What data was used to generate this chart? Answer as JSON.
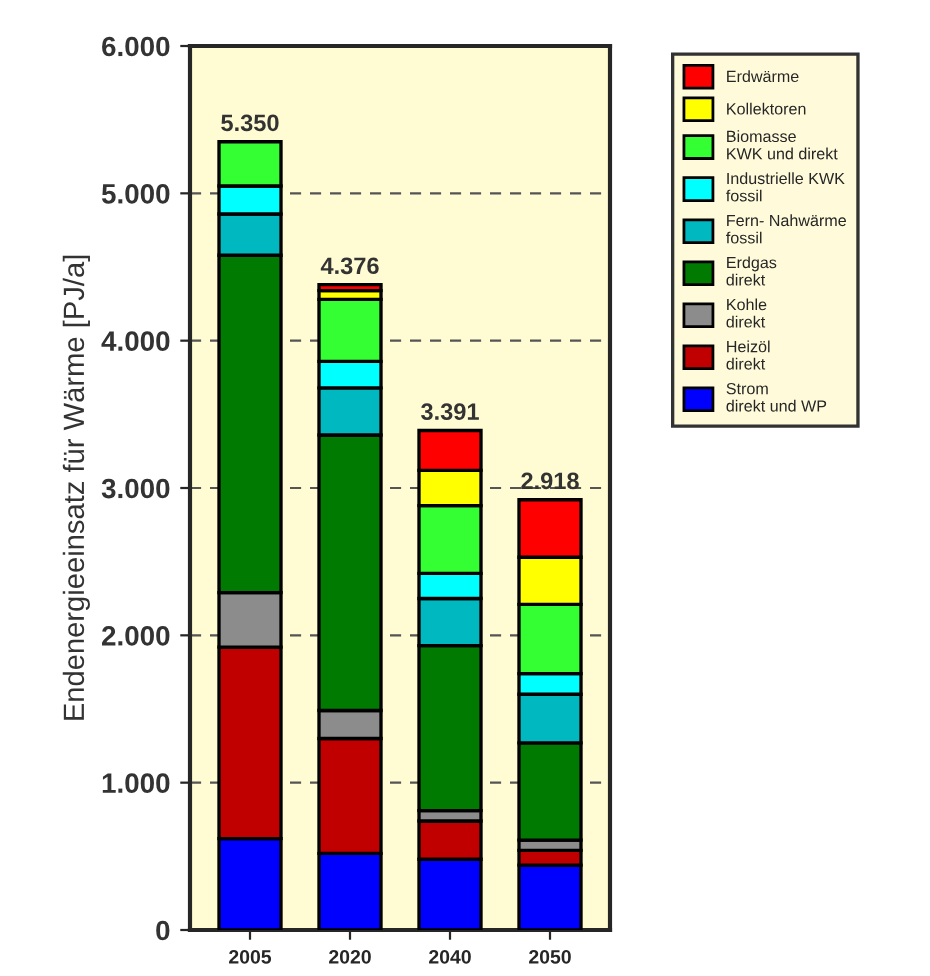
{
  "chart_data": {
    "type": "bar",
    "stacked": true,
    "ylabel": "Endenergieeinsatz für Wärme [PJ/a]",
    "categories": [
      "2005",
      "2020",
      "2040",
      "2050"
    ],
    "series": [
      {
        "name": "Strom\ndirekt und WP",
        "color": "#0000ff",
        "values": [
          620,
          520,
          480,
          440
        ]
      },
      {
        "name": "Heizöl\ndirekt",
        "color": "#c00000",
        "values": [
          1300,
          780,
          260,
          100
        ]
      },
      {
        "name": "Kohle\ndirekt",
        "color": "#8c8c8c",
        "values": [
          370,
          190,
          70,
          70
        ]
      },
      {
        "name": "Erdgas\ndirekt",
        "color": "#007a00",
        "values": [
          2290,
          1870,
          1120,
          660
        ]
      },
      {
        "name": "Fern- Nahwärme\nfossil",
        "color": "#00b8c0",
        "values": [
          280,
          320,
          320,
          330
        ]
      },
      {
        "name": "Industrielle KWK\nfossil",
        "color": "#00ffff",
        "values": [
          190,
          180,
          170,
          140
        ]
      },
      {
        "name": "Biomasse\nKWK und direkt",
        "color": "#33ff33",
        "values": [
          300,
          420,
          460,
          470
        ]
      },
      {
        "name": "Kollektoren",
        "color": "#ffff00",
        "values": [
          null,
          60,
          240,
          320
        ]
      },
      {
        "name": "Erdwärme",
        "color": "#ff0000",
        "values": [
          null,
          40,
          270,
          390
        ]
      }
    ],
    "totals": [
      "5.350",
      "4.376",
      "3.391",
      "2.918"
    ],
    "ylim": [
      0,
      6000
    ],
    "yticks": [
      {
        "value": 0,
        "label": "0"
      },
      {
        "value": 1000,
        "label": "1.000"
      },
      {
        "value": 2000,
        "label": "2.000"
      },
      {
        "value": 3000,
        "label": "3.000"
      },
      {
        "value": 4000,
        "label": "4.000"
      },
      {
        "value": 5000,
        "label": "5.000"
      },
      {
        "value": 6000,
        "label": "6.000"
      }
    ],
    "grid": "y",
    "legend": "right"
  }
}
